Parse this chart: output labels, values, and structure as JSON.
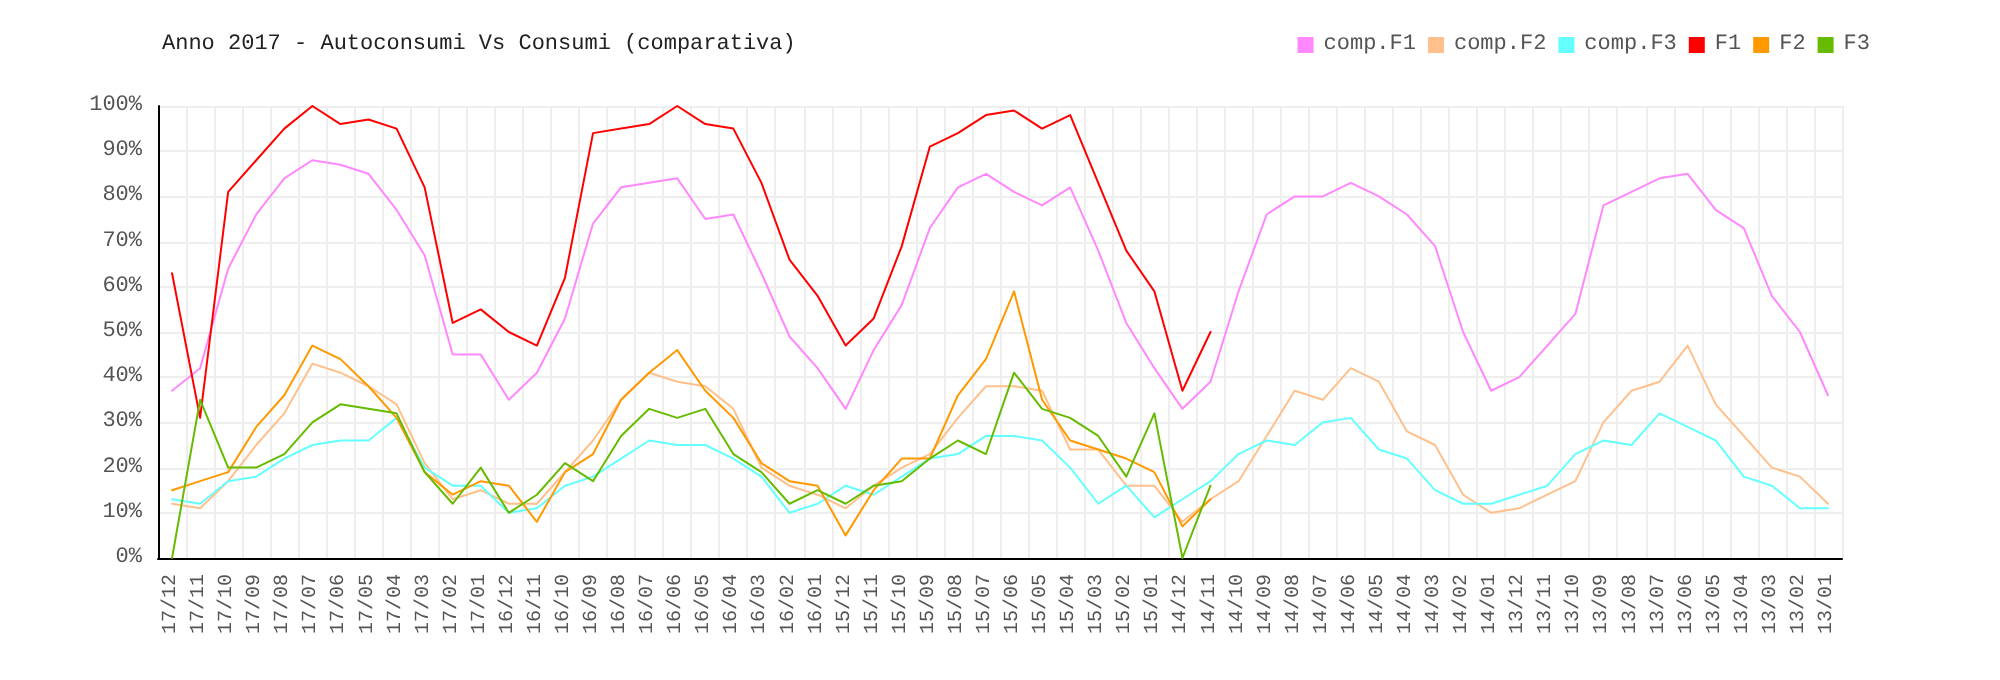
{
  "chart_data": {
    "type": "line",
    "title": "Anno 2017 - Autoconsumi Vs Consumi (comparativa)",
    "categories": [
      "17/12",
      "17/11",
      "17/10",
      "17/09",
      "17/08",
      "17/07",
      "17/06",
      "17/05",
      "17/04",
      "17/03",
      "17/02",
      "17/01",
      "16/12",
      "16/11",
      "16/10",
      "16/09",
      "16/08",
      "16/07",
      "16/06",
      "16/05",
      "16/04",
      "16/03",
      "16/02",
      "16/01",
      "15/12",
      "15/11",
      "15/10",
      "15/09",
      "15/08",
      "15/07",
      "15/06",
      "15/05",
      "15/04",
      "15/03",
      "15/02",
      "15/01",
      "14/12",
      "14/11",
      "14/10",
      "14/09",
      "14/08",
      "14/07",
      "14/06",
      "14/05",
      "14/04",
      "14/03",
      "14/02",
      "14/01",
      "13/12",
      "13/11",
      "13/10",
      "13/09",
      "13/08",
      "13/07",
      "13/06",
      "13/05",
      "13/04",
      "13/03",
      "13/02",
      "13/01"
    ],
    "series": [
      {
        "name": "comp.F1",
        "color": "#ff88ff",
        "values": [
          37,
          42,
          64,
          76,
          84,
          88,
          87,
          85,
          77,
          67,
          45,
          45,
          35,
          41,
          53,
          74,
          82,
          83,
          84,
          75,
          76,
          63,
          49,
          42,
          33,
          46,
          56,
          73,
          82,
          85,
          81,
          78,
          82,
          68,
          52,
          42,
          33,
          39,
          59,
          76,
          80,
          80,
          83,
          80,
          76,
          69,
          50,
          37,
          40,
          47,
          54,
          78,
          81,
          84,
          85,
          77,
          73,
          58,
          50,
          36
        ]
      },
      {
        "name": "comp.F2",
        "color": "#ffc08c",
        "values": [
          12,
          11,
          17,
          25,
          32,
          43,
          41,
          38,
          34,
          21,
          13,
          15,
          12,
          12,
          19,
          26,
          35,
          41,
          39,
          38,
          33,
          20,
          16,
          14,
          11,
          16,
          20,
          23,
          31,
          38,
          38,
          37,
          24,
          24,
          16,
          16,
          8,
          13,
          17,
          27,
          37,
          35,
          42,
          39,
          28,
          25,
          14,
          10,
          11,
          14,
          17,
          30,
          37,
          39,
          47,
          34,
          27,
          20,
          18,
          12
        ]
      },
      {
        "name": "comp.F3",
        "color": "#66ffff",
        "values": [
          13,
          12,
          17,
          18,
          22,
          25,
          26,
          26,
          31,
          20,
          16,
          16,
          10,
          11,
          16,
          18,
          22,
          26,
          25,
          25,
          22,
          18,
          10,
          12,
          16,
          14,
          18,
          22,
          23,
          27,
          27,
          26,
          20,
          12,
          16,
          9,
          13,
          17,
          23,
          26,
          25,
          30,
          31,
          24,
          22,
          15,
          12,
          12,
          14,
          16,
          23,
          26,
          25,
          32,
          29,
          26,
          18,
          16,
          11,
          11
        ]
      },
      {
        "name": "F1",
        "color": "#ff0000",
        "values": [
          63,
          31,
          81,
          88,
          95,
          100,
          96,
          97,
          95,
          82,
          52,
          55,
          50,
          47,
          62,
          94,
          95,
          96,
          100,
          96,
          95,
          83,
          66,
          58,
          47,
          53,
          69,
          91,
          94,
          98,
          99,
          95,
          98,
          83,
          68,
          59,
          37,
          50,
          null,
          null,
          null,
          null,
          null,
          null,
          null,
          null,
          null,
          null,
          null,
          null,
          null,
          null,
          null,
          null,
          null,
          null,
          null,
          null,
          null,
          null
        ]
      },
      {
        "name": "F2",
        "color": "#ff9900",
        "values": [
          15,
          17,
          19,
          29,
          36,
          47,
          44,
          38,
          31,
          19,
          14,
          17,
          16,
          8,
          19,
          23,
          35,
          41,
          46,
          37,
          31,
          21,
          17,
          16,
          5,
          15,
          22,
          22,
          36,
          44,
          59,
          35,
          26,
          24,
          22,
          19,
          7,
          13,
          null,
          null,
          null,
          null,
          null,
          null,
          null,
          null,
          null,
          null,
          null,
          null,
          null,
          null,
          null,
          null,
          null,
          null,
          null,
          null,
          null,
          null
        ]
      },
      {
        "name": "F3",
        "color": "#66bb00",
        "values": [
          0,
          35,
          20,
          20,
          23,
          30,
          34,
          33,
          32,
          19,
          12,
          20,
          10,
          14,
          21,
          17,
          27,
          33,
          31,
          33,
          23,
          19,
          12,
          15,
          12,
          16,
          17,
          22,
          26,
          23,
          41,
          33,
          31,
          27,
          18,
          32,
          0,
          16,
          null,
          null,
          null,
          null,
          null,
          null,
          null,
          null,
          null,
          null,
          null,
          null,
          null,
          null,
          null,
          null,
          null,
          null,
          null,
          null,
          null,
          null
        ]
      }
    ],
    "ylim": [
      0,
      100
    ],
    "yticks": [
      {
        "value": 0,
        "label": "0%"
      },
      {
        "value": 10,
        "label": "10%"
      },
      {
        "value": 20,
        "label": "20%"
      },
      {
        "value": 30,
        "label": "30%"
      },
      {
        "value": 40,
        "label": "40%"
      },
      {
        "value": 50,
        "label": "50%"
      },
      {
        "value": 60,
        "label": "60%"
      },
      {
        "value": 70,
        "label": "70%"
      },
      {
        "value": 80,
        "label": "80%"
      },
      {
        "value": 90,
        "label": "90%"
      },
      {
        "value": 100,
        "label": "100%"
      }
    ],
    "grid": true,
    "legend": "top right",
    "marker": "none",
    "line_style": "solid"
  }
}
